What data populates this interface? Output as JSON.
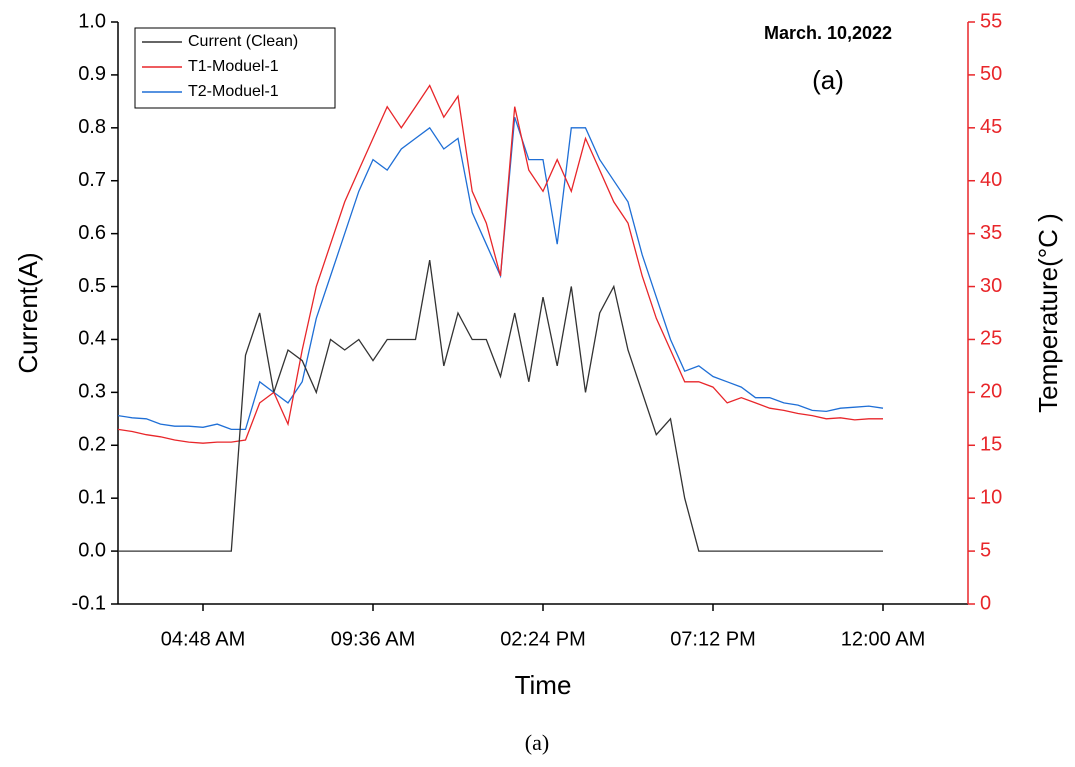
{
  "chart_data": {
    "type": "line",
    "annotation": "March. 10,2022",
    "panel_label": "(a)",
    "caption": "(a)",
    "xlabel": "Time",
    "ylabel": "Current(A)",
    "y2label": "Temperature(°C )",
    "xlim": [
      2.4,
      26.4
    ],
    "xticks": [
      {
        "value": 4.8,
        "label": "04:48 AM"
      },
      {
        "value": 9.6,
        "label": "09:36 AM"
      },
      {
        "value": 14.4,
        "label": "02:24 PM"
      },
      {
        "value": 19.2,
        "label": "07:12 PM"
      },
      {
        "value": 24,
        "label": "12:00 AM"
      }
    ],
    "ylim": [
      -0.1,
      1.0
    ],
    "yticks": [
      -0.1,
      {
        "value": 0,
        "label": "0.0"
      },
      0.1,
      0.2,
      0.3,
      0.4,
      0.5,
      0.6,
      0.7,
      0.8,
      0.9,
      {
        "value": 1,
        "label": "1.0"
      }
    ],
    "y2lim": [
      0,
      55
    ],
    "y2ticks": [
      0,
      5,
      10,
      15,
      20,
      25,
      30,
      35,
      40,
      45,
      50,
      55
    ],
    "y2color": "#e8262a",
    "legend": "upper left",
    "x": [
      2.4,
      2.8,
      3.2,
      3.6,
      4.0,
      4.4,
      4.8,
      5.2,
      5.6,
      6.0,
      6.4,
      6.8,
      7.2,
      7.6,
      8.0,
      8.4,
      8.8,
      9.2,
      9.6,
      10.0,
      10.4,
      10.8,
      11.2,
      11.6,
      12.0,
      12.4,
      12.8,
      13.2,
      13.6,
      14.0,
      14.4,
      14.8,
      15.2,
      15.6,
      16.0,
      16.4,
      16.8,
      17.2,
      17.6,
      18.0,
      18.4,
      18.8,
      19.2,
      19.6,
      20.0,
      20.4,
      20.8,
      21.2,
      21.6,
      22.0,
      22.4,
      22.8,
      23.2,
      23.6,
      24.0
    ],
    "series": [
      {
        "name": "Current (Clean)",
        "color": "#333333",
        "axis": "y",
        "values": [
          0,
          0,
          0,
          0,
          0,
          0,
          0,
          0,
          0,
          0.37,
          0.45,
          0.3,
          0.38,
          0.36,
          0.3,
          0.4,
          0.38,
          0.4,
          0.36,
          0.4,
          0.4,
          0.4,
          0.55,
          0.35,
          0.45,
          0.4,
          0.4,
          0.33,
          0.45,
          0.32,
          0.48,
          0.35,
          0.5,
          0.3,
          0.45,
          0.5,
          0.38,
          0.3,
          0.22,
          0.25,
          0.1,
          0,
          0,
          0,
          0,
          0,
          0,
          0,
          0,
          0,
          0,
          0,
          0,
          0,
          0
        ]
      },
      {
        "name": "T1-Moduel-1",
        "color": "#e8262a",
        "axis": "y2",
        "values": [
          16.5,
          16.3,
          16,
          15.8,
          15.5,
          15.3,
          15.2,
          15.3,
          15.3,
          15.5,
          19,
          20,
          17,
          24,
          30,
          34,
          38,
          41,
          44,
          47,
          45,
          47,
          49,
          46,
          48,
          39,
          36,
          31,
          47,
          41,
          39,
          42,
          39,
          44,
          41,
          38,
          36,
          31,
          27,
          24,
          21,
          21,
          20.5,
          19,
          19.5,
          19,
          18.5,
          18.3,
          18,
          17.8,
          17.5,
          17.6,
          17.4,
          17.5,
          17.5
        ]
      },
      {
        "name": "T2-Moduel-1",
        "color": "#1f6fd6",
        "axis": "y2",
        "values": [
          17.8,
          17.6,
          17.5,
          17,
          16.8,
          16.8,
          16.7,
          17,
          16.5,
          16.5,
          21,
          20,
          19,
          21,
          27,
          31,
          35,
          39,
          42,
          41,
          43,
          44,
          45,
          43,
          44,
          37,
          34,
          31,
          46,
          42,
          42,
          34,
          45,
          45,
          42,
          40,
          38,
          33,
          29,
          25,
          22,
          22.5,
          21.5,
          21,
          20.5,
          19.5,
          19.5,
          19,
          18.8,
          18.3,
          18.2,
          18.5,
          18.6,
          18.7,
          18.5
        ]
      }
    ]
  }
}
